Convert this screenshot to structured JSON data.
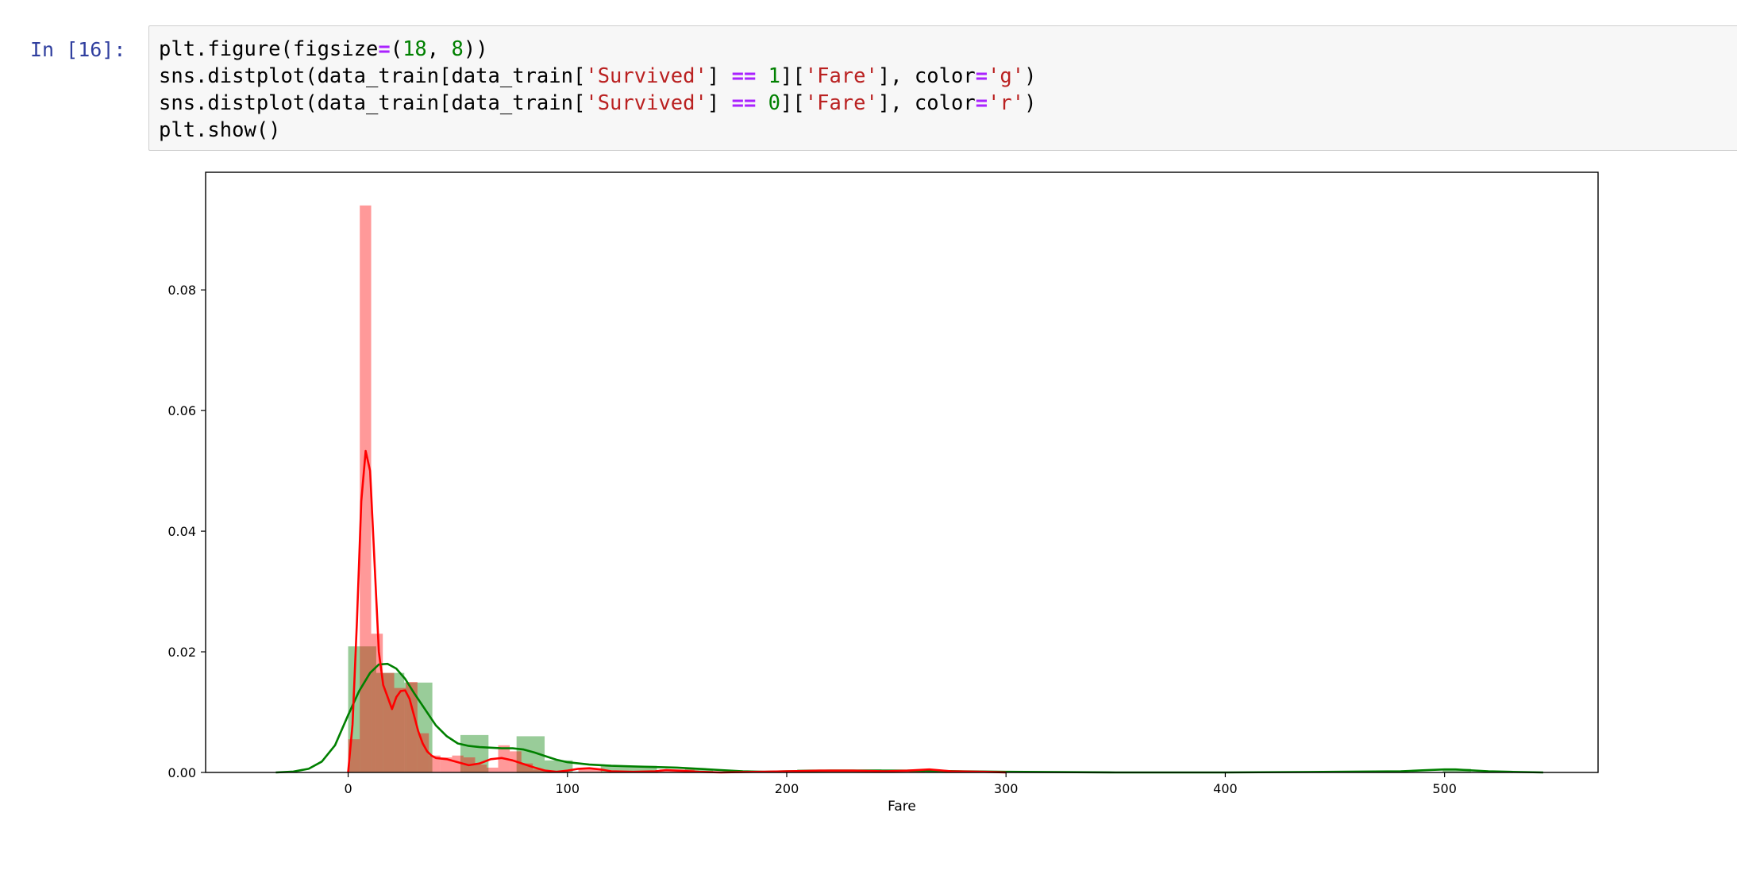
{
  "cell": {
    "prompt": "In [16]:",
    "code_lines": [
      [
        {
          "t": "plt.figure(figsize"
        },
        {
          "t": "=",
          "c": "o"
        },
        {
          "t": "("
        },
        {
          "t": "18",
          "c": "n"
        },
        {
          "t": ", "
        },
        {
          "t": "8",
          "c": "n"
        },
        {
          "t": "))"
        }
      ],
      [
        {
          "t": "sns.distplot(data_train[data_train["
        },
        {
          "t": "'Survived'",
          "c": "s"
        },
        {
          "t": "] "
        },
        {
          "t": "==",
          "c": "o"
        },
        {
          "t": " "
        },
        {
          "t": "1",
          "c": "n"
        },
        {
          "t": "]["
        },
        {
          "t": "'Fare'",
          "c": "s"
        },
        {
          "t": "], color"
        },
        {
          "t": "=",
          "c": "o"
        },
        {
          "t": "'g'",
          "c": "s"
        },
        {
          "t": ")"
        }
      ],
      [
        {
          "t": "sns.distplot(data_train[data_train["
        },
        {
          "t": "'Survived'",
          "c": "s"
        },
        {
          "t": "] "
        },
        {
          "t": "==",
          "c": "o"
        },
        {
          "t": " "
        },
        {
          "t": "0",
          "c": "n"
        },
        {
          "t": "]["
        },
        {
          "t": "'Fare'",
          "c": "s"
        },
        {
          "t": "], color"
        },
        {
          "t": "=",
          "c": "o"
        },
        {
          "t": "'r'",
          "c": "s"
        },
        {
          "t": ")"
        }
      ],
      [
        {
          "t": "plt.show()"
        }
      ]
    ]
  },
  "chart_data": {
    "type": "bar",
    "title": "",
    "xlabel": "Fare",
    "ylabel": "",
    "xlim": [
      -65,
      570
    ],
    "ylim": [
      0,
      0.0995
    ],
    "xticks": [
      0,
      100,
      200,
      300,
      400,
      500
    ],
    "xtick_labels": [
      "0",
      "100",
      "200",
      "300",
      "400",
      "500"
    ],
    "yticks": [
      0,
      0.02,
      0.04,
      0.06,
      0.08
    ],
    "ytick_labels": [
      "0.00",
      "0.02",
      "0.04",
      "0.06",
      "0.08"
    ],
    "grid": false,
    "legend": "none",
    "series": [
      {
        "color": "#008000",
        "bar_alpha": 0.4,
        "bins": [
          {
            "x0": 0,
            "x1": 12.8,
            "y": 0.0209
          },
          {
            "x0": 12.8,
            "x1": 25.6,
            "y": 0.0165
          },
          {
            "x0": 25.6,
            "x1": 38.4,
            "y": 0.0149
          },
          {
            "x0": 38.4,
            "x1": 51.2,
            "y": 0.0
          },
          {
            "x0": 51.2,
            "x1": 64,
            "y": 0.0062
          },
          {
            "x0": 64,
            "x1": 76.8,
            "y": 0.0
          },
          {
            "x0": 76.8,
            "x1": 89.6,
            "y": 0.006
          },
          {
            "x0": 89.6,
            "x1": 102.4,
            "y": 0.002
          },
          {
            "x0": 102.4,
            "x1": 115.2,
            "y": 0.0
          },
          {
            "x0": 115.2,
            "x1": 128,
            "y": 0.0011
          },
          {
            "x0": 128,
            "x1": 140.8,
            "y": 0.0011
          },
          {
            "x0": 140.8,
            "x1": 153.6,
            "y": 0.0
          },
          {
            "x0": 153.6,
            "x1": 166.4,
            "y": 0.0006
          },
          {
            "x0": 204.8,
            "x1": 217.6,
            "y": 0.0005
          },
          {
            "x0": 217.6,
            "x1": 230.4,
            "y": 0.0005
          },
          {
            "x0": 230.4,
            "x1": 243.2,
            "y": 0.0005
          },
          {
            "x0": 256,
            "x1": 268.8,
            "y": 0.0003
          },
          {
            "x0": 499.2,
            "x1": 512,
            "y": 0.0006
          }
        ],
        "kde_x": [
          -33,
          -25,
          -18,
          -12,
          -6,
          0,
          5,
          10,
          14,
          18,
          22,
          26,
          30,
          35,
          40,
          45,
          50,
          55,
          60,
          65,
          70,
          75,
          80,
          85,
          90,
          95,
          100,
          110,
          120,
          130,
          140,
          150,
          160,
          170,
          180,
          190,
          200,
          220,
          240,
          260,
          280,
          300,
          350,
          400,
          450,
          480,
          490,
          500,
          505,
          510,
          520,
          530,
          545
        ],
        "kde_y": [
          0,
          0.00015,
          0.0006,
          0.0018,
          0.0045,
          0.0095,
          0.0135,
          0.0165,
          0.0179,
          0.018,
          0.0172,
          0.0155,
          0.0132,
          0.0105,
          0.0078,
          0.006,
          0.0048,
          0.0044,
          0.0042,
          0.0041,
          0.004,
          0.004,
          0.0038,
          0.0033,
          0.0027,
          0.0021,
          0.0017,
          0.0013,
          0.0011,
          0.001,
          0.0009,
          0.0008,
          0.0006,
          0.0004,
          0.0002,
          0.0001,
          0.0002,
          0.0003,
          0.0003,
          0.0003,
          0.0002,
          0.0001,
          0.0,
          0.0,
          0.0001,
          0.0002,
          0.00035,
          0.0005,
          0.0005,
          0.0004,
          0.0002,
          0.0001,
          0.0
        ]
      },
      {
        "color": "#ff0000",
        "bar_alpha": 0.4,
        "bins": [
          {
            "x0": 0,
            "x1": 5.3,
            "y": 0.0055
          },
          {
            "x0": 5.3,
            "x1": 10.5,
            "y": 0.094
          },
          {
            "x0": 10.5,
            "x1": 15.8,
            "y": 0.023
          },
          {
            "x0": 15.8,
            "x1": 21,
            "y": 0.0165
          },
          {
            "x0": 21,
            "x1": 26.3,
            "y": 0.014
          },
          {
            "x0": 26.3,
            "x1": 31.6,
            "y": 0.015
          },
          {
            "x0": 31.6,
            "x1": 36.8,
            "y": 0.0065
          },
          {
            "x0": 36.8,
            "x1": 42.1,
            "y": 0.0028
          },
          {
            "x0": 42.1,
            "x1": 47.4,
            "y": 0.0025
          },
          {
            "x0": 47.4,
            "x1": 52.6,
            "y": 0.0028
          },
          {
            "x0": 52.6,
            "x1": 57.9,
            "y": 0.0025
          },
          {
            "x0": 57.9,
            "x1": 63.2,
            "y": 0.0013
          },
          {
            "x0": 63.2,
            "x1": 68.4,
            "y": 0.0008
          },
          {
            "x0": 68.4,
            "x1": 73.7,
            "y": 0.0045
          },
          {
            "x0": 73.7,
            "x1": 79,
            "y": 0.0035
          },
          {
            "x0": 79,
            "x1": 84.2,
            "y": 0.0015
          },
          {
            "x0": 84.2,
            "x1": 89.5,
            "y": 0.0005
          },
          {
            "x0": 105,
            "x1": 115.8,
            "y": 0.0006
          },
          {
            "x0": 142,
            "x1": 158,
            "y": 0.0005
          },
          {
            "x0": 210,
            "x1": 237,
            "y": 0.0004
          },
          {
            "x0": 247,
            "x1": 263,
            "y": 0.0004
          }
        ],
        "kde_x": [
          0,
          2,
          4,
          6,
          8,
          10,
          12,
          14,
          16,
          18,
          20,
          22,
          24,
          26,
          28,
          30,
          32,
          34,
          36,
          38,
          40,
          45,
          50,
          55,
          60,
          65,
          70,
          75,
          80,
          85,
          90,
          95,
          100,
          105,
          110,
          115,
          120,
          130,
          140,
          145,
          150,
          160,
          170,
          200,
          215,
          230,
          245,
          255,
          265,
          275,
          290,
          300
        ],
        "kde_y": [
          0.0,
          0.008,
          0.025,
          0.045,
          0.0533,
          0.05,
          0.035,
          0.02,
          0.0145,
          0.0125,
          0.0105,
          0.0125,
          0.0135,
          0.0136,
          0.0122,
          0.0095,
          0.0068,
          0.0048,
          0.0035,
          0.0028,
          0.0024,
          0.0022,
          0.0017,
          0.0012,
          0.0015,
          0.0022,
          0.0024,
          0.002,
          0.0014,
          0.0008,
          0.0003,
          0.0001,
          0.0003,
          0.0006,
          0.0007,
          0.0005,
          0.0002,
          0.0001,
          0.0002,
          0.0004,
          0.0003,
          0.0001,
          0.0,
          0.0002,
          0.0003,
          0.0003,
          0.0002,
          0.0003,
          0.0005,
          0.0002,
          0.0001,
          0.0
        ]
      }
    ]
  }
}
